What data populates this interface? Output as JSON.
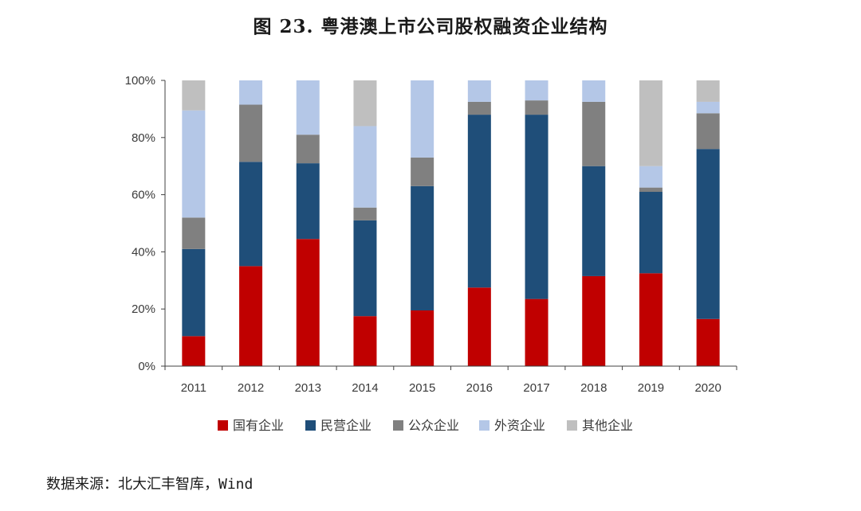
{
  "title": "图 23.  粤港澳上市公司股权融资企业结构",
  "source": "数据来源：北大汇丰智库，Wind",
  "chart_data": {
    "type": "bar",
    "stacked": true,
    "categories": [
      "2011",
      "2012",
      "2013",
      "2014",
      "2015",
      "2016",
      "2017",
      "2018",
      "2019",
      "2020"
    ],
    "ylim": [
      0,
      100
    ],
    "yticks": [
      0,
      20,
      40,
      60,
      80,
      100
    ],
    "ytick_labels": [
      "0%",
      "20%",
      "40%",
      "60%",
      "80%",
      "100%"
    ],
    "legend_position": "bottom",
    "series": [
      {
        "name": "国有企业",
        "color": "#c00000",
        "values": [
          10.5,
          35,
          44.5,
          17.5,
          19.5,
          27.5,
          23.5,
          31.5,
          32.5,
          16.5
        ]
      },
      {
        "name": "民营企业",
        "color": "#1f4e79",
        "values": [
          30.5,
          36.5,
          26.5,
          33.5,
          43.5,
          60.5,
          64.5,
          38.5,
          28.5,
          59.5
        ]
      },
      {
        "name": "公众企业",
        "color": "#808080",
        "values": [
          11,
          20,
          10,
          4.5,
          10,
          4.5,
          5,
          22.5,
          1.5,
          12.5
        ]
      },
      {
        "name": "外资企业",
        "color": "#b4c7e7",
        "values": [
          37.5,
          8.5,
          19,
          28.5,
          27,
          7.5,
          7,
          7.5,
          7.5,
          4
        ]
      },
      {
        "name": "其他企业",
        "color": "#bfbfbf",
        "values": [
          10.5,
          0,
          0,
          16,
          0,
          0,
          0,
          0,
          30,
          7.5
        ]
      }
    ]
  }
}
